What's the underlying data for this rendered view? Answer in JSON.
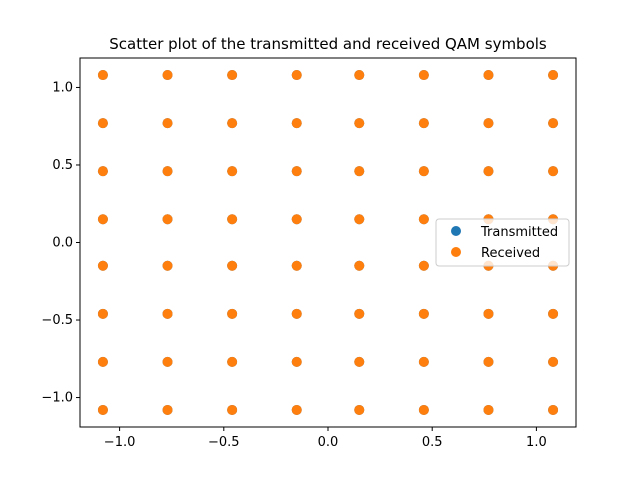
{
  "chart_data": {
    "type": "scatter",
    "title": "Scatter plot of the transmitted and received QAM symbols",
    "xlabel": "",
    "ylabel": "",
    "xlim": [
      -1.19,
      1.19
    ],
    "ylim": [
      -1.19,
      1.19
    ],
    "x_ticks": [
      -1.0,
      -0.5,
      0.0,
      0.5,
      1.0
    ],
    "x_tick_labels": [
      "−1.0",
      "−0.5",
      "0.0",
      "0.5",
      "1.0"
    ],
    "y_ticks": [
      -1.0,
      -0.5,
      0.0,
      0.5,
      1.0
    ],
    "y_tick_labels": [
      "−1.0",
      "−0.5",
      "0.0",
      "0.5",
      "1.0"
    ],
    "grid": false,
    "legend_position": "center-right",
    "constellation_levels": [
      -1.08,
      -0.77,
      -0.46,
      -0.15,
      0.15,
      0.46,
      0.77,
      1.08
    ],
    "series": [
      {
        "name": "Transmitted",
        "color": "#1f77b4"
      },
      {
        "name": "Received",
        "color": "#ff7f0e"
      }
    ]
  }
}
